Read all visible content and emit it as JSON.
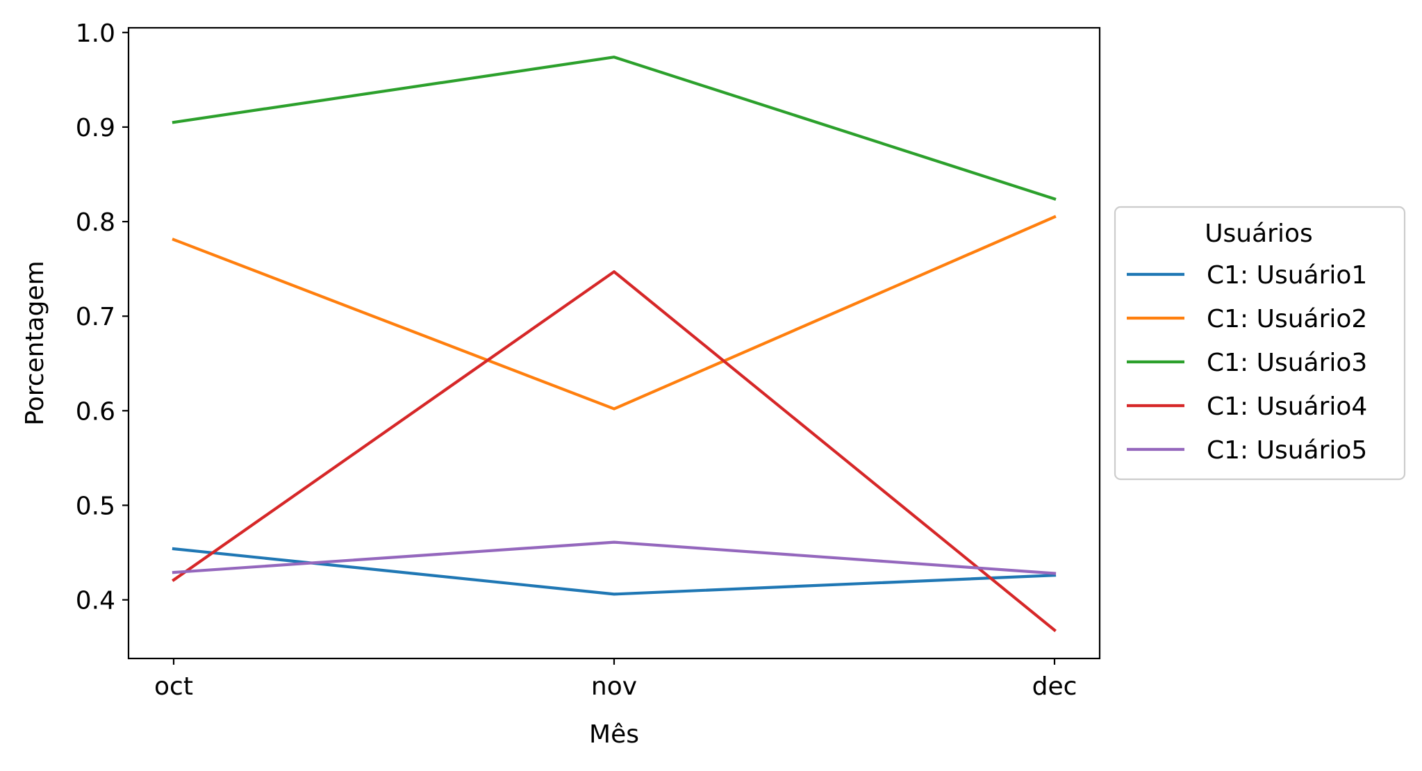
{
  "chart_data": {
    "type": "line",
    "title": "",
    "xlabel": "Mês",
    "ylabel": "Porcentagem",
    "categories": [
      "oct",
      "nov",
      "dec"
    ],
    "ylim": [
      0.338,
      1.005
    ],
    "yticks": [
      0.4,
      0.5,
      0.6,
      0.7,
      0.8,
      0.9,
      1.0
    ],
    "ytick_labels": [
      "0.4",
      "0.5",
      "0.6",
      "0.7",
      "0.8",
      "0.9",
      "1.0"
    ],
    "grid": false,
    "legend": {
      "title": "Usuários",
      "placement": "outside-right"
    },
    "series": [
      {
        "name": "C1: Usuário1",
        "color": "#1f77b4",
        "values": [
          0.454,
          0.406,
          0.426
        ]
      },
      {
        "name": "C1: Usuário2",
        "color": "#ff7f0e",
        "values": [
          0.781,
          0.602,
          0.805
        ]
      },
      {
        "name": "C1: Usuário3",
        "color": "#2ca02c",
        "values": [
          0.905,
          0.974,
          0.824
        ]
      },
      {
        "name": "C1: Usuário4",
        "color": "#d62728",
        "values": [
          0.421,
          0.747,
          0.368
        ]
      },
      {
        "name": "C1: Usuário5",
        "color": "#9467bd",
        "values": [
          0.429,
          0.461,
          0.428
        ]
      }
    ]
  }
}
